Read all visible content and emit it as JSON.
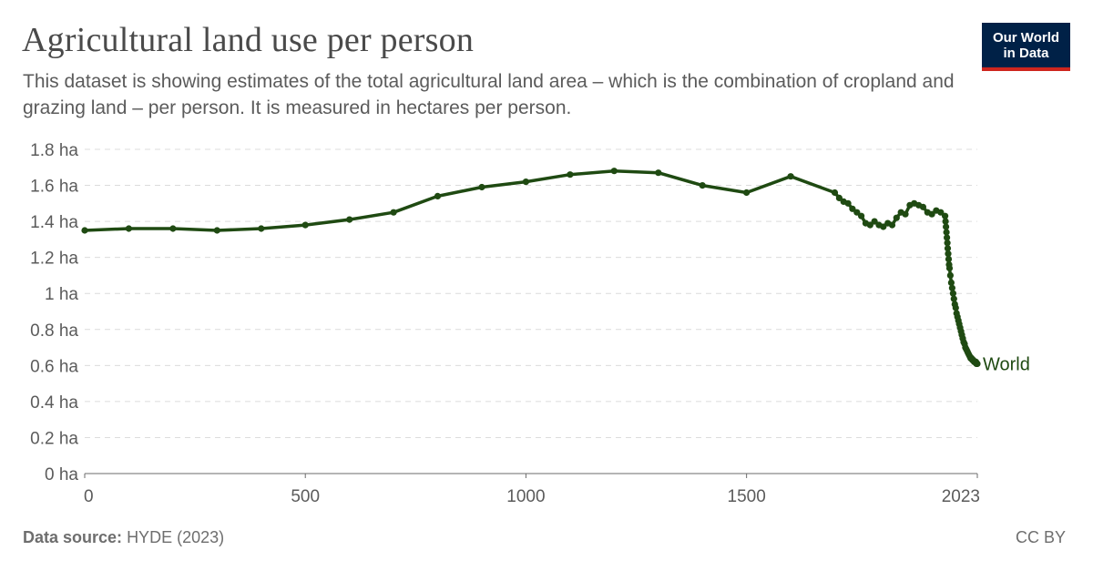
{
  "title": "Agricultural land use per person",
  "subtitle": "This dataset is showing estimates of the total agricultural land area – which is the combination of cropland and grazing land – per person. It is measured in hectares per person.",
  "logo": {
    "line1": "Our World",
    "line2": "in Data"
  },
  "footer": {
    "source_label": "Data source:",
    "source_value": "HYDE (2023)",
    "license": "CC BY"
  },
  "colors": {
    "series": "#1f4a12",
    "grid": "#dcdcdc",
    "axis": "#6b6b6b",
    "logo_bg": "#002147",
    "logo_accent": "#ce261e"
  },
  "chart_data": {
    "type": "line",
    "xlim": [
      0,
      2023
    ],
    "ylim": [
      0,
      1.8
    ],
    "grid": "horizontal dashed",
    "x_ticks": [
      {
        "value": 0,
        "label": "0"
      },
      {
        "value": 500,
        "label": "500"
      },
      {
        "value": 1000,
        "label": "1000"
      },
      {
        "value": 1500,
        "label": "1500"
      },
      {
        "value": 2023,
        "label": "2023"
      }
    ],
    "y_ticks": [
      {
        "value": 0,
        "label": "0 ha"
      },
      {
        "value": 0.2,
        "label": "0.2 ha"
      },
      {
        "value": 0.4,
        "label": "0.4 ha"
      },
      {
        "value": 0.6,
        "label": "0.6 ha"
      },
      {
        "value": 0.8,
        "label": "0.8 ha"
      },
      {
        "value": 1.0,
        "label": "1 ha"
      },
      {
        "value": 1.2,
        "label": "1.2 ha"
      },
      {
        "value": 1.4,
        "label": "1.4 ha"
      },
      {
        "value": 1.6,
        "label": "1.6 ha"
      },
      {
        "value": 1.8,
        "label": "1.8 ha"
      }
    ],
    "series": [
      {
        "name": "World",
        "x": [
          0,
          100,
          200,
          300,
          400,
          500,
          600,
          700,
          800,
          900,
          1000,
          1100,
          1200,
          1300,
          1400,
          1500,
          1600,
          1700,
          1710,
          1720,
          1730,
          1740,
          1750,
          1760,
          1770,
          1780,
          1790,
          1800,
          1810,
          1820,
          1830,
          1840,
          1850,
          1860,
          1870,
          1880,
          1890,
          1900,
          1910,
          1920,
          1930,
          1940,
          1950,
          1951,
          1952,
          1953,
          1954,
          1955,
          1956,
          1957,
          1958,
          1959,
          1960,
          1962,
          1964,
          1966,
          1968,
          1970,
          1972,
          1974,
          1976,
          1978,
          1980,
          1982,
          1984,
          1986,
          1988,
          1990,
          1992,
          1994,
          1996,
          1998,
          2000,
          2002,
          2004,
          2006,
          2008,
          2010,
          2012,
          2014,
          2016,
          2018,
          2020,
          2021,
          2022,
          2023
        ],
        "y": [
          1.35,
          1.36,
          1.36,
          1.35,
          1.36,
          1.38,
          1.41,
          1.45,
          1.54,
          1.59,
          1.62,
          1.66,
          1.68,
          1.67,
          1.6,
          1.56,
          1.65,
          1.56,
          1.53,
          1.51,
          1.5,
          1.47,
          1.45,
          1.43,
          1.39,
          1.38,
          1.4,
          1.38,
          1.37,
          1.39,
          1.38,
          1.42,
          1.45,
          1.44,
          1.49,
          1.5,
          1.49,
          1.48,
          1.45,
          1.44,
          1.46,
          1.45,
          1.43,
          1.4,
          1.37,
          1.34,
          1.31,
          1.28,
          1.25,
          1.22,
          1.19,
          1.16,
          1.14,
          1.1,
          1.06,
          1.03,
          1.0,
          0.97,
          0.94,
          0.92,
          0.89,
          0.87,
          0.85,
          0.83,
          0.81,
          0.79,
          0.77,
          0.75,
          0.73,
          0.72,
          0.7,
          0.69,
          0.68,
          0.67,
          0.66,
          0.65,
          0.64,
          0.64,
          0.63,
          0.63,
          0.62,
          0.62,
          0.62,
          0.61,
          0.61,
          0.61
        ]
      }
    ]
  }
}
